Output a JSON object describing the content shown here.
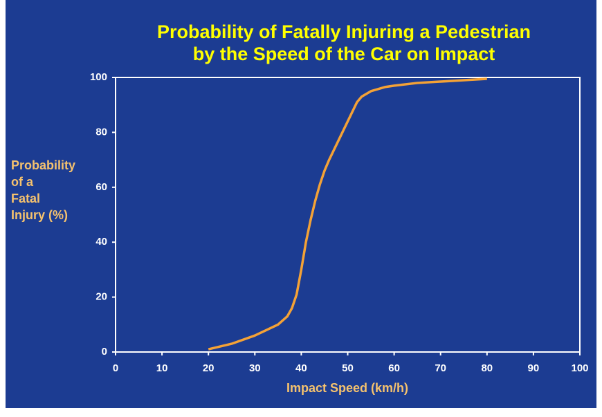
{
  "chart_data": {
    "type": "line",
    "title": [
      "Probability of Fatally Injuring a Pedestrian",
      "by the Speed of the Car on Impact"
    ],
    "x_label": "Impact Speed (km/h)",
    "y_label": [
      "Probability",
      "of a",
      "Fatal",
      "Injury (%)"
    ],
    "x": [
      20,
      25,
      30,
      35,
      37,
      38,
      39,
      40,
      41,
      42,
      43,
      44,
      45,
      46,
      48,
      50,
      52,
      53,
      55,
      58,
      60,
      65,
      70,
      75,
      80
    ],
    "series": [
      {
        "color": "#f4a236",
        "values": [
          1,
          3,
          6,
          10,
          13,
          16,
          21,
          30,
          40,
          48,
          55,
          61,
          66,
          70,
          77,
          84,
          91,
          93,
          95,
          96.5,
          97,
          98,
          98.5,
          99,
          99.5
        ]
      }
    ],
    "xlim": [
      0,
      100
    ],
    "xticks": [
      0,
      10,
      20,
      30,
      40,
      50,
      60,
      70,
      80,
      90,
      100
    ],
    "ylim": [
      0,
      100
    ],
    "yticks": [
      0,
      20,
      40,
      60,
      80,
      100
    ]
  }
}
